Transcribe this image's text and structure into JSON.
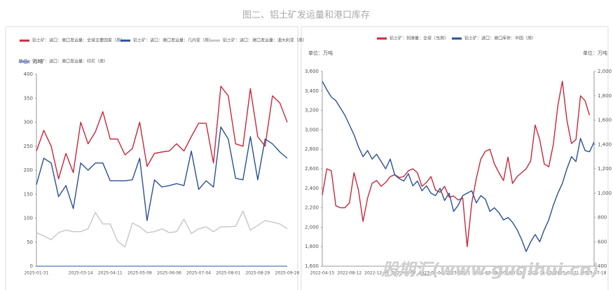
{
  "title": "图二、铝土矿发运量和港口库存",
  "watermark": "股期汇(www.guqihui.cn)",
  "chart_data": [
    {
      "type": "line",
      "y_unit": "单位：万吨",
      "categories": [
        "2025-01-31",
        null,
        null,
        null,
        null,
        null,
        "2025-03-14",
        null,
        null,
        null,
        "2025-04-11",
        null,
        null,
        null,
        "2025-05-09",
        null,
        null,
        null,
        "2025-06-06",
        null,
        null,
        null,
        "2025-07-04",
        null,
        null,
        null,
        "2025-08-01",
        null,
        null,
        null,
        "2025-08-29",
        null,
        null,
        null,
        "2025-09-26"
      ],
      "ylim": [
        0,
        400
      ],
      "yticks": [
        0,
        50,
        100,
        150,
        200,
        250,
        300,
        350,
        400
      ],
      "series": [
        {
          "name": "铝土矿：进口：港口发运量：全球主要国家（周）",
          "color": "#c8283c",
          "values": [
            240,
            283,
            250,
            182,
            235,
            195,
            300,
            255,
            280,
            322,
            265,
            265,
            232,
            245,
            300,
            208,
            235,
            238,
            240,
            255,
            240,
            270,
            298,
            298,
            215,
            375,
            355,
            255,
            250,
            370,
            270,
            250,
            355,
            340,
            300
          ]
        },
        {
          "name": "铝土矿：进口：港口发运量：几内亚（周）",
          "color": "#2a5095",
          "values": [
            170,
            225,
            215,
            145,
            168,
            120,
            215,
            200,
            215,
            215,
            178,
            178,
            178,
            180,
            225,
            95,
            180,
            165,
            168,
            172,
            168,
            240,
            160,
            178,
            165,
            290,
            265,
            183,
            180,
            270,
            180,
            265,
            255,
            238,
            225
          ]
        },
        {
          "name": "铝土矿：进口：港口发运量：澳大利亚（周）",
          "color": "#c6c6c6",
          "values": [
            70,
            63,
            55,
            70,
            75,
            72,
            72,
            78,
            112,
            88,
            88,
            52,
            40,
            90,
            82,
            70,
            72,
            78,
            70,
            72,
            98,
            68,
            78,
            82,
            72,
            82,
            82,
            83,
            115,
            75,
            85,
            95,
            92,
            88,
            78
          ]
        },
        {
          "name": "铝土矿：进口：港口发运量：印尼（周）",
          "color": "#6f8fc6",
          "values": [
            0,
            0,
            0,
            0,
            0,
            0,
            0,
            0,
            0,
            0,
            0,
            0,
            0,
            0,
            0,
            0,
            0,
            0,
            0,
            0,
            0,
            0,
            0,
            0,
            0,
            0,
            0,
            0,
            0,
            0,
            0,
            0,
            0,
            0,
            0
          ]
        }
      ]
    },
    {
      "type": "line",
      "y_unit": "单位：万吨",
      "y2_unit": "单位：万吨",
      "categories": [
        "2022-04-15",
        null,
        null,
        null,
        null,
        null,
        "2022-08-12",
        null,
        null,
        null,
        null,
        null,
        "2022-12-09",
        null,
        null,
        null,
        null,
        null,
        "2023-04-07",
        null,
        null,
        null,
        null,
        null,
        "2023-08-04",
        null,
        null,
        null,
        null,
        null,
        "2023-12-01",
        null,
        null,
        null,
        null,
        null,
        "2024-03-29",
        null,
        null,
        null,
        null,
        null,
        "2024-07-26",
        null,
        null,
        null,
        null,
        null,
        "2024-11-22",
        null,
        null,
        null,
        null,
        null,
        "2025-03-21",
        null,
        null,
        null,
        null,
        null,
        "2025-07-18"
      ],
      "ylim": [
        1600,
        3600
      ],
      "yticks": [
        {
          "value": 1600,
          "label": "1,600"
        },
        {
          "value": 1800,
          "label": "1,800"
        },
        {
          "value": 2000,
          "label": "2,000"
        },
        {
          "value": 2200,
          "label": "2,200"
        },
        {
          "value": 2400,
          "label": "2,400"
        },
        {
          "value": 2600,
          "label": "2,600"
        },
        {
          "value": 2800,
          "label": "2,800"
        },
        {
          "value": 3000,
          "label": "3,000"
        },
        {
          "value": 3200,
          "label": "3,200"
        },
        {
          "value": 3400,
          "label": "3,400"
        },
        {
          "value": 3600,
          "label": "3,600"
        }
      ],
      "y2lim": [
        400,
        2000
      ],
      "y2ticks": [
        400,
        600,
        800,
        {
          "value": 1000,
          "label": "1,000"
        },
        {
          "value": 1200,
          "label": "1,200"
        },
        {
          "value": 1400,
          "label": "1,400"
        },
        {
          "value": 1600,
          "label": "1,600"
        },
        {
          "value": 1800,
          "label": "1,800"
        },
        {
          "value": 2000,
          "label": "2,000"
        }
      ],
      "series": [
        {
          "name": "铝土矿：到港量：全球（当周）",
          "color": "#c8283c",
          "values": [
            2330,
            2600,
            2580,
            2220,
            2200,
            2200,
            2250,
            2560,
            2380,
            2060,
            2300,
            2450,
            2480,
            2420,
            2460,
            2520,
            2540,
            2510,
            2520,
            2580,
            2600,
            2560,
            2420,
            2460,
            2520,
            2380,
            2360,
            2420,
            2310,
            2320,
            2280,
            2300,
            1800,
            2250,
            2500,
            2700,
            2780,
            2800,
            2650,
            2560,
            2480,
            2720,
            2450,
            2520,
            2560,
            2600,
            2680,
            3050,
            2900,
            2650,
            2620,
            2850,
            3250,
            3500,
            3100,
            2860,
            2900,
            3350,
            3300,
            3150,
            null
          ]
        },
        {
          "name": "铝土矿：进口：港口库存：中国（周）",
          "color": "#2a5095",
          "axis": "y2",
          "values": [
            1920,
            1850,
            1790,
            1760,
            1700,
            1640,
            1560,
            1480,
            1380,
            1300,
            1350,
            1280,
            1320,
            1260,
            1200,
            1280,
            1150,
            1120,
            1100,
            1160,
            1060,
            1100,
            1020,
            1060,
            1000,
            980,
            1040,
            940,
            1000,
            850,
            900,
            980,
            1000,
            1020,
            920,
            980,
            950,
            850,
            880,
            840,
            780,
            800,
            760,
            700,
            620,
            520,
            600,
            660,
            600,
            700,
            780,
            900,
            1000,
            1080,
            1200,
            1300,
            1260,
            1450,
            1350,
            1340,
            1420
          ]
        }
      ]
    }
  ]
}
